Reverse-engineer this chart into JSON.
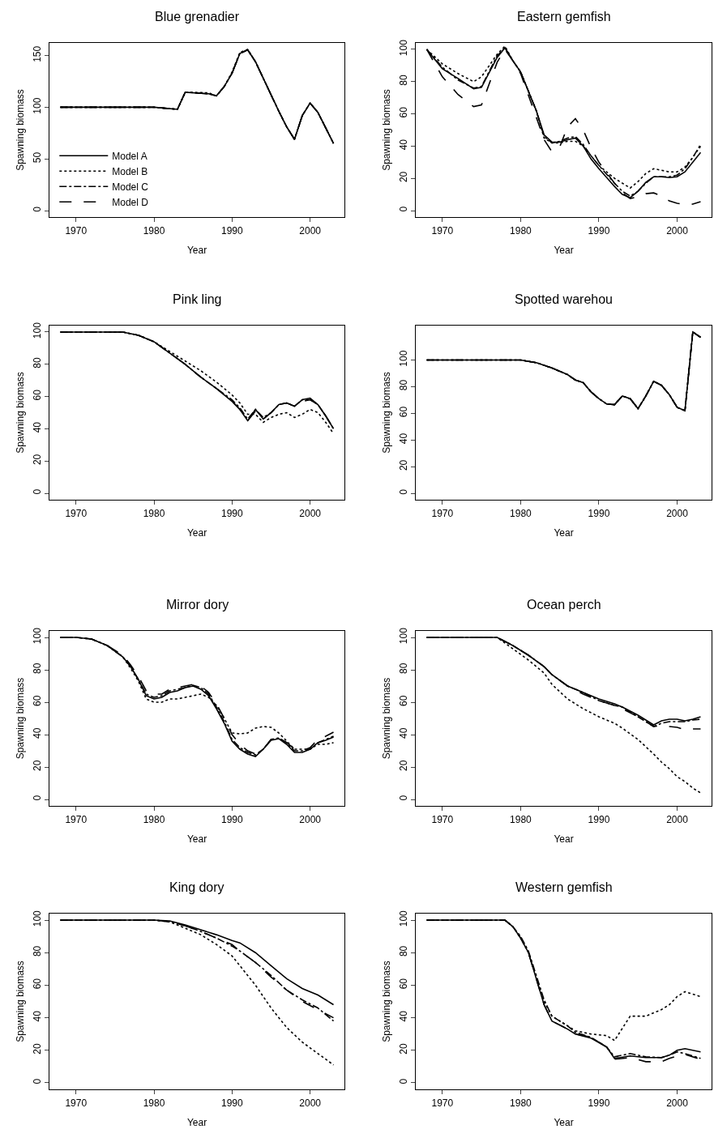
{
  "chart_data": [
    {
      "type": "line",
      "title": "Blue grenadier",
      "xlabel": "Year",
      "ylabel": "Spawning biomass",
      "xlim": [
        1966.6,
        2004.4
      ],
      "xticks": [
        1970,
        1980,
        1990,
        2000
      ],
      "ylim": [
        -6.2,
        162.2
      ],
      "yticks": [
        0,
        50,
        100,
        150
      ],
      "grid": false,
      "legend": "bottom left",
      "x": [
        1968,
        1972,
        1976,
        1980,
        1983,
        1984,
        1987,
        1988,
        1989,
        1990,
        1991,
        1992,
        1993,
        1994,
        1995,
        1996,
        1997,
        1998,
        1999,
        2000,
        2001,
        2002,
        2003
      ],
      "series": [
        {
          "name": "Model A",
          "color": "#000000",
          "line_style": "solid",
          "marker": "none",
          "values": [
            100,
            100,
            100,
            100,
            98,
            114.5,
            113,
            111,
            120,
            133,
            152,
            155.5,
            144,
            128,
            112,
            96,
            81,
            69,
            92,
            104,
            95,
            80,
            65
          ]
        },
        {
          "name": "Model B",
          "color": "#000000",
          "line_style": "dotted",
          "marker": "none",
          "values": [
            100,
            100,
            100,
            100,
            98,
            114.5,
            114,
            111,
            120,
            134,
            153,
            156,
            144,
            128,
            112,
            96,
            81,
            69,
            92,
            104,
            95,
            80,
            65
          ]
        },
        {
          "name": "Model C",
          "color": "#000000",
          "line_style": "dashdot",
          "marker": "none",
          "values": [
            100,
            100,
            100,
            100,
            98,
            114.5,
            113,
            111,
            120,
            133,
            152,
            155.5,
            144,
            128,
            112,
            96,
            81,
            69,
            92,
            104,
            95,
            80,
            65
          ]
        },
        {
          "name": "Model D",
          "color": "#000000",
          "line_style": "dashed",
          "marker": "none",
          "values": [
            100,
            100,
            100,
            100,
            98,
            114.5,
            113,
            111,
            120,
            133,
            152,
            155.5,
            144,
            128,
            112,
            96,
            81,
            69,
            92,
            104,
            95,
            80,
            65
          ]
        }
      ]
    },
    {
      "type": "line",
      "title": "Eastern gemfish",
      "xlabel": "Year",
      "ylabel": "Spawning biomass",
      "xlim": [
        1966.6,
        2004.4
      ],
      "xticks": [
        1970,
        1980,
        1990,
        2000
      ],
      "ylim": [
        -4,
        104
      ],
      "yticks": [
        0,
        20,
        40,
        60,
        80,
        100
      ],
      "grid": false,
      "x": [
        1968,
        1970,
        1972,
        1974,
        1975,
        1977,
        1978,
        1979,
        1980,
        1982,
        1983,
        1984,
        1985,
        1986,
        1987,
        1988,
        1989,
        1990,
        1992,
        1993,
        1994,
        1995,
        1996,
        1997,
        1998,
        1999,
        2000,
        2001,
        2002,
        2003
      ],
      "series": [
        {
          "color": "#000000",
          "line_style": "solid",
          "marker": "none",
          "values": [
            100,
            88,
            82,
            75.5,
            76.5,
            95,
            101,
            93,
            86,
            62,
            47,
            42.5,
            42.5,
            44,
            45,
            40,
            32,
            26,
            15,
            10,
            8,
            12,
            17.5,
            21,
            21,
            20.5,
            21,
            24,
            30,
            36
          ]
        },
        {
          "color": "#000000",
          "line_style": "dotted",
          "marker": "none",
          "values": [
            100,
            91,
            85,
            80,
            83,
            97,
            102,
            93,
            86,
            62,
            45,
            42,
            42,
            43,
            43,
            40,
            34,
            28,
            20,
            17,
            14,
            18,
            23,
            26,
            25,
            24,
            24,
            27,
            33,
            40
          ]
        },
        {
          "color": "#000000",
          "line_style": "dashdot",
          "marker": "none",
          "values": [
            100,
            89,
            81,
            76,
            77,
            96,
            101,
            93,
            86,
            62,
            46,
            42,
            43,
            45,
            46,
            41,
            34,
            28,
            17,
            12,
            9,
            12,
            17,
            21,
            21,
            21,
            22,
            26,
            33,
            41
          ]
        },
        {
          "color": "#000000",
          "line_style": "dashed",
          "marker": "none",
          "values": [
            100,
            83,
            72,
            64.5,
            65.5,
            92,
            100,
            93,
            85,
            58,
            44,
            36.5,
            39.5,
            52,
            57,
            50,
            39,
            30,
            17,
            11,
            7.5,
            8.5,
            10.5,
            11,
            9,
            6,
            4.5,
            3.8,
            4,
            5.5
          ]
        }
      ]
    },
    {
      "type": "line",
      "title": "Pink ling",
      "xlabel": "Year",
      "ylabel": "Spawning biomass",
      "xlim": [
        1966.6,
        2004.4
      ],
      "xticks": [
        1970,
        1980,
        1990,
        2000
      ],
      "ylim": [
        -4,
        104
      ],
      "yticks": [
        0,
        20,
        40,
        60,
        80,
        100
      ],
      "grid": false,
      "x": [
        1968,
        1976,
        1978,
        1980,
        1982,
        1984,
        1986,
        1988,
        1990,
        1991,
        1992,
        1993,
        1994,
        1995,
        1996,
        1997,
        1998,
        1999,
        2000,
        2001,
        2002,
        2003
      ],
      "series": [
        {
          "color": "#000000",
          "line_style": "solid",
          "marker": "none",
          "values": [
            100,
            100,
            98,
            94,
            87,
            80,
            72,
            65,
            57,
            52,
            45,
            52,
            46,
            50,
            55,
            56,
            54,
            58,
            59,
            55,
            48,
            40
          ]
        },
        {
          "color": "#000000",
          "line_style": "dotted",
          "marker": "none",
          "values": [
            100,
            100,
            98,
            94,
            88,
            82,
            76,
            69,
            61,
            56,
            49,
            49,
            44,
            47,
            49,
            50,
            47,
            49,
            52,
            50,
            44,
            37
          ]
        },
        {
          "color": "#000000",
          "line_style": "dashdot",
          "marker": "none",
          "values": [
            100,
            100,
            98,
            94,
            87,
            80,
            72,
            65,
            58,
            53,
            46,
            52,
            47,
            50,
            55,
            56,
            54,
            58,
            58,
            55,
            48,
            40
          ]
        },
        {
          "color": "#000000",
          "line_style": "dashed",
          "marker": "none",
          "values": [
            100,
            100,
            98,
            94,
            87,
            80,
            72,
            65,
            57,
            52,
            45,
            51,
            46,
            50,
            55,
            56,
            54,
            57,
            58,
            55,
            48,
            40
          ]
        }
      ]
    },
    {
      "type": "line",
      "title": "Spotted warehou",
      "xlabel": "Year",
      "ylabel": "Spawning biomass",
      "xlim": [
        1966.6,
        2004.4
      ],
      "xticks": [
        1970,
        1980,
        1990,
        2000
      ],
      "ylim": [
        -4.8,
        125.8
      ],
      "yticks": [
        0,
        20,
        40,
        60,
        80,
        100
      ],
      "grid": false,
      "x": [
        1968,
        1980,
        1982,
        1984,
        1986,
        1987,
        1988,
        1989,
        1990,
        1991,
        1992,
        1993,
        1994,
        1995,
        1996,
        1997,
        1998,
        1999,
        2000,
        2001,
        2002,
        2003
      ],
      "series": [
        {
          "color": "#000000",
          "line_style": "solid",
          "marker": "none",
          "values": [
            100,
            100,
            98,
            94,
            89,
            85,
            83,
            76,
            71,
            67,
            66.5,
            73,
            71,
            63.5,
            73,
            84,
            81,
            74,
            64.5,
            62,
            121,
            117
          ]
        },
        {
          "color": "#000000",
          "line_style": "dotted",
          "marker": "none",
          "values": [
            100,
            100,
            98,
            94,
            89,
            85,
            83,
            76,
            71,
            67,
            66.5,
            73,
            71,
            63.5,
            73,
            84,
            81,
            74,
            64.5,
            62,
            121,
            117
          ]
        },
        {
          "color": "#000000",
          "line_style": "dashdot",
          "marker": "none",
          "values": [
            100,
            100,
            98,
            94,
            89,
            85,
            83,
            76,
            71,
            67,
            66.5,
            73,
            71,
            63.5,
            73,
            84,
            81,
            74,
            64.5,
            62,
            121,
            117
          ]
        },
        {
          "color": "#000000",
          "line_style": "dashed",
          "marker": "none",
          "values": [
            100,
            100,
            98,
            94,
            89,
            85,
            83,
            76,
            71,
            67,
            66.5,
            73,
            71,
            63.5,
            73,
            84,
            81,
            74,
            64.5,
            62,
            121,
            117
          ]
        }
      ]
    },
    {
      "type": "line",
      "title": "Mirror dory",
      "xlabel": "Year",
      "ylabel": "Spawning biomass",
      "xlim": [
        1966.6,
        2004.4
      ],
      "xticks": [
        1970,
        1980,
        1990,
        2000
      ],
      "ylim": [
        -4,
        104
      ],
      "yticks": [
        0,
        20,
        40,
        60,
        80,
        100
      ],
      "grid": false,
      "x": [
        1968,
        1970,
        1972,
        1974,
        1976,
        1977,
        1978,
        1979,
        1980,
        1981,
        1982,
        1983,
        1984,
        1985,
        1986,
        1987,
        1988,
        1989,
        1990,
        1991,
        1992,
        1993,
        1994,
        1995,
        1996,
        1997,
        1998,
        1999,
        2000,
        2001,
        2002,
        2003
      ],
      "series": [
        {
          "color": "#000000",
          "line_style": "solid",
          "marker": "none",
          "values": [
            100,
            100,
            99,
            95,
            88,
            82,
            74,
            64,
            62,
            63,
            66,
            67,
            69,
            70,
            68,
            64,
            56,
            47,
            36,
            31,
            28,
            26.5,
            31,
            36.5,
            37.5,
            34,
            29,
            29,
            31,
            35,
            36.5,
            38.5
          ]
        },
        {
          "color": "#000000",
          "line_style": "dotted",
          "marker": "none",
          "values": [
            100,
            100,
            99,
            95,
            88,
            81,
            73,
            62,
            60,
            60,
            62,
            62,
            63,
            64,
            65,
            63,
            58,
            50,
            41,
            40.5,
            41,
            44,
            45,
            44.5,
            41,
            36,
            31,
            31,
            31,
            34,
            34,
            35
          ]
        },
        {
          "color": "#000000",
          "line_style": "dashdot",
          "marker": "none",
          "values": [
            100,
            100,
            99,
            95,
            88,
            82,
            74,
            65,
            63,
            64,
            67,
            68,
            69,
            70.5,
            69,
            65,
            57,
            48,
            37,
            32,
            29,
            27.5,
            31,
            37,
            38,
            35,
            30,
            30,
            31,
            35,
            37,
            39
          ]
        },
        {
          "color": "#000000",
          "line_style": "dashed",
          "marker": "none",
          "values": [
            100,
            100,
            99,
            95,
            89,
            83,
            76,
            67,
            65,
            65,
            68,
            69,
            70,
            71,
            70,
            66,
            59,
            50,
            40,
            34,
            30,
            28,
            31,
            37,
            38,
            35,
            31,
            30,
            32,
            37,
            39,
            41.5
          ]
        }
      ]
    },
    {
      "type": "line",
      "title": "Ocean perch",
      "xlabel": "Year",
      "ylabel": "Spawning biomass",
      "xlim": [
        1966.6,
        2004.4
      ],
      "xticks": [
        1970,
        1980,
        1990,
        2000
      ],
      "ylim": [
        -4,
        104
      ],
      "yticks": [
        0,
        20,
        40,
        60,
        80,
        100
      ],
      "grid": false,
      "x": [
        1968,
        1977,
        1979,
        1981,
        1983,
        1984,
        1986,
        1988,
        1990,
        1992,
        1993,
        1995,
        1997,
        1998,
        1999,
        2000,
        2001,
        2002,
        2003
      ],
      "series": [
        {
          "color": "#000000",
          "line_style": "solid",
          "marker": "none",
          "values": [
            100,
            100,
            95,
            89,
            82,
            77,
            70,
            66,
            62,
            59,
            57,
            52,
            46,
            48.5,
            49.5,
            49.5,
            48.5,
            49.5,
            51
          ]
        },
        {
          "color": "#000000",
          "line_style": "dotted",
          "marker": "none",
          "values": [
            100,
            100,
            93,
            86,
            78,
            71,
            62,
            56,
            51,
            47,
            44,
            37,
            28,
            23,
            19,
            14,
            11,
            7,
            4
          ]
        },
        {
          "color": "#000000",
          "line_style": "dashdot",
          "marker": "none",
          "values": [
            100,
            100,
            95,
            89,
            82,
            77,
            70,
            66,
            61,
            58,
            57,
            51,
            45,
            47,
            48,
            48,
            48,
            49,
            49.5
          ]
        },
        {
          "color": "#000000",
          "line_style": "dashed",
          "marker": "none",
          "values": [
            100,
            100,
            95,
            89,
            82,
            77,
            70,
            65,
            61,
            58,
            56,
            51,
            45,
            45.5,
            45,
            44.5,
            43,
            43.5,
            43.5
          ]
        }
      ]
    },
    {
      "type": "line",
      "title": "King dory",
      "xlabel": "Year",
      "ylabel": "Spawning biomass",
      "xlim": [
        1966.6,
        2004.4
      ],
      "xticks": [
        1970,
        1980,
        1990,
        2000
      ],
      "ylim": [
        -4,
        104
      ],
      "yticks": [
        0,
        20,
        40,
        60,
        80,
        100
      ],
      "grid": false,
      "x": [
        1968,
        1980,
        1982,
        1984,
        1986,
        1988,
        1990,
        1991,
        1993,
        1995,
        1997,
        1999,
        2001,
        2003
      ],
      "series": [
        {
          "color": "#000000",
          "line_style": "solid",
          "marker": "none",
          "values": [
            100,
            100,
            99.5,
            97,
            94,
            91,
            87.5,
            86,
            80,
            72,
            64,
            58,
            54,
            48
          ]
        },
        {
          "color": "#000000",
          "line_style": "dotted",
          "marker": "none",
          "values": [
            100,
            100,
            99,
            95,
            91,
            85,
            78,
            72,
            60,
            46,
            34,
            25,
            18,
            11
          ]
        },
        {
          "color": "#000000",
          "line_style": "dashdot",
          "marker": "none",
          "values": [
            100,
            100,
            99,
            96.5,
            93,
            89,
            84,
            81,
            74,
            66,
            57,
            51,
            46,
            38
          ]
        },
        {
          "color": "#000000",
          "line_style": "dashed",
          "marker": "none",
          "values": [
            100,
            100,
            99,
            96.5,
            93,
            89,
            85,
            81,
            74,
            65,
            57,
            50,
            45,
            40
          ]
        }
      ]
    },
    {
      "type": "line",
      "title": "Western gemfish",
      "xlabel": "Year",
      "ylabel": "Spawning biomass",
      "xlim": [
        1966.6,
        2004.4
      ],
      "xticks": [
        1970,
        1980,
        1990,
        2000
      ],
      "ylim": [
        -4,
        104
      ],
      "yticks": [
        0,
        20,
        40,
        60,
        80,
        100
      ],
      "grid": false,
      "x": [
        1968,
        1978,
        1979,
        1980,
        1981,
        1982,
        1983,
        1984,
        1986,
        1987,
        1989,
        1991,
        1992,
        1994,
        1996,
        1998,
        1999,
        2000,
        2001,
        2003
      ],
      "series": [
        {
          "color": "#000000",
          "line_style": "solid",
          "marker": "none",
          "values": [
            100,
            100,
            96,
            89,
            80,
            64,
            48,
            38,
            33,
            30,
            27.5,
            22,
            15,
            16.5,
            15.5,
            15.5,
            17,
            20,
            21,
            19
          ]
        },
        {
          "color": "#000000",
          "line_style": "dotted",
          "marker": "none",
          "values": [
            100,
            100,
            96,
            89,
            80,
            65,
            50,
            41,
            35,
            32,
            30,
            29,
            26,
            41,
            41,
            45,
            48,
            53,
            56,
            53
          ]
        },
        {
          "color": "#000000",
          "line_style": "dashdot",
          "marker": "none",
          "values": [
            100,
            100,
            96,
            90,
            81,
            66,
            51,
            41,
            35,
            31,
            28,
            22,
            16,
            18,
            16,
            15.5,
            17,
            19,
            18,
            15
          ]
        },
        {
          "color": "#000000",
          "line_style": "dashed",
          "marker": "none",
          "values": [
            100,
            100,
            96,
            89,
            80,
            64,
            48,
            38,
            33,
            30,
            28,
            22,
            14.5,
            15.5,
            13,
            13,
            15,
            16.5,
            17.5,
            14.5
          ]
        }
      ]
    }
  ]
}
